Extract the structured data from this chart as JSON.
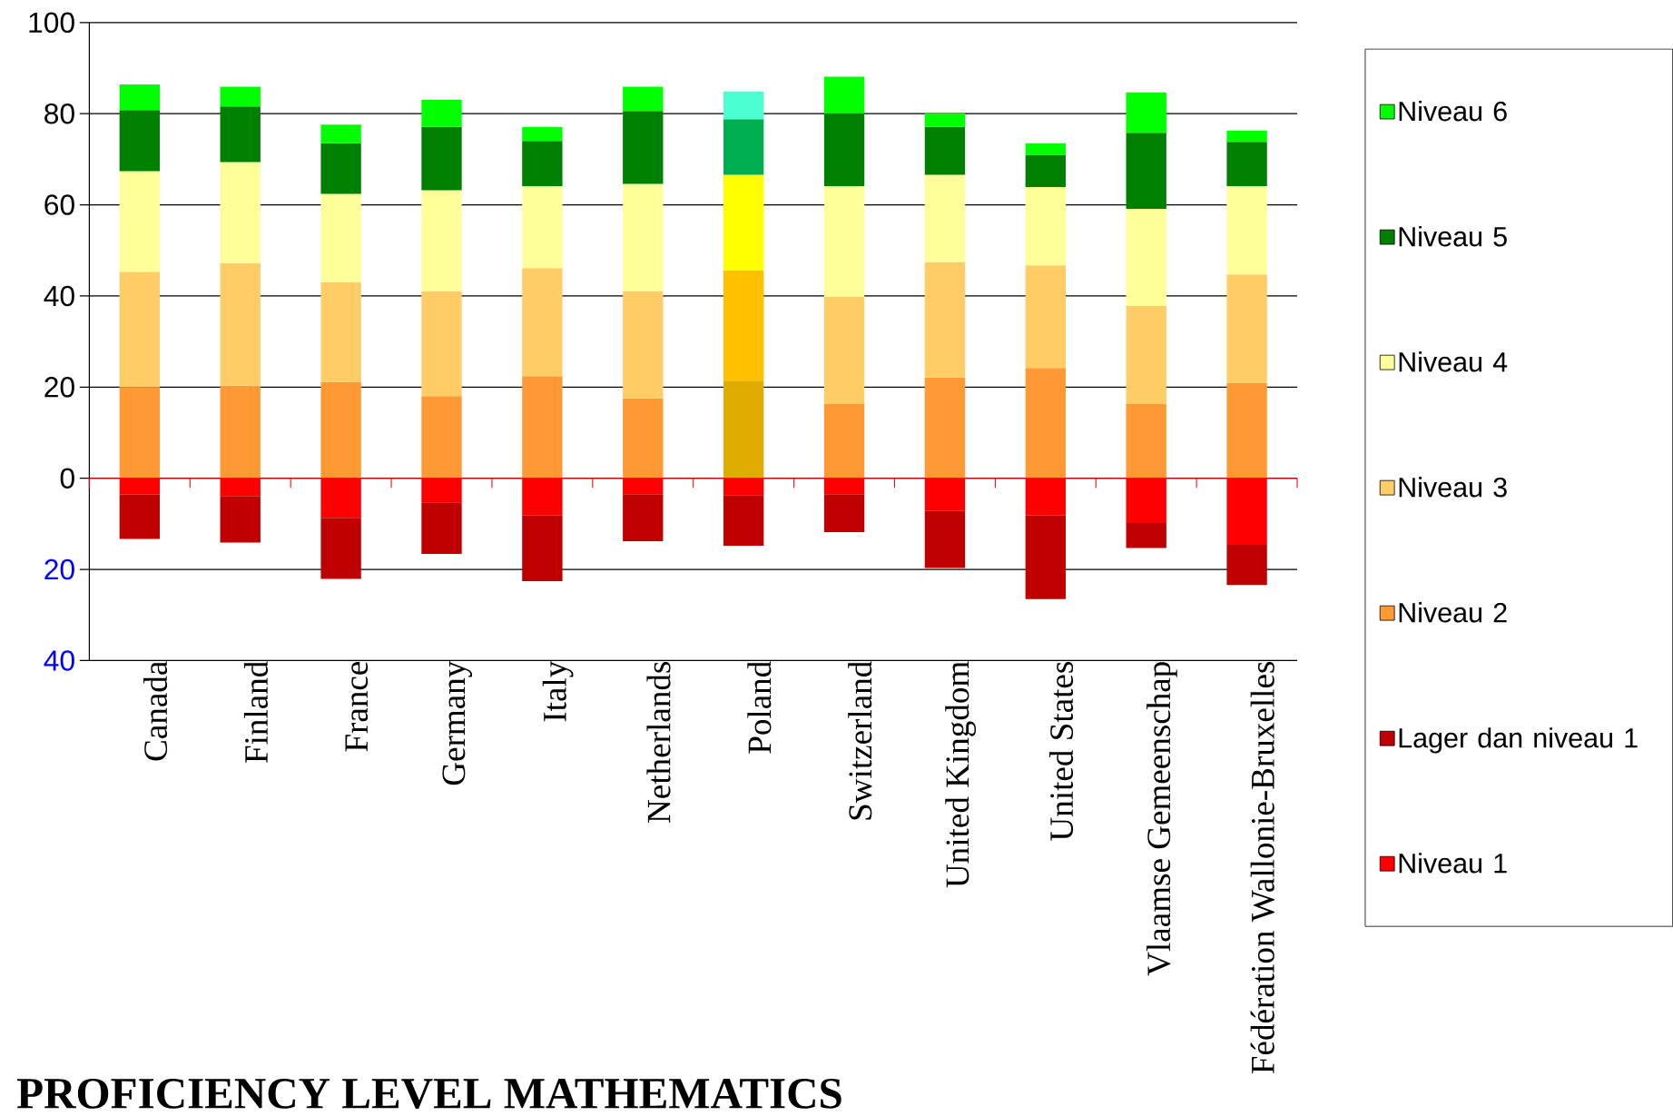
{
  "chart_data": {
    "type": "bar",
    "title": "PROFICIENCY LEVEL MATHEMATICS",
    "categories": [
      "Canada",
      "Finland",
      "France",
      "Germany",
      "Italy",
      "Netherlands",
      "Poland",
      "Switzerland",
      "United Kingdom",
      "United States",
      "Vlaamse Gemeenschap",
      "Fédération Wallonie-Bruxelles"
    ],
    "stacked": true,
    "series": [
      {
        "name": "Niveau 1",
        "color": "#ff0000",
        "values": [
          -3.6,
          -3.9,
          -8.7,
          -5.3,
          -8.2,
          -3.5,
          -3.7,
          -3.5,
          -7.2,
          -8.2,
          -9.8,
          -14.6
        ]
      },
      {
        "name": "Lager dan niveau 1",
        "color": "#c00000",
        "values": [
          -9.7,
          -10.2,
          -13.4,
          -11.3,
          -14.4,
          -10.3,
          -11.1,
          -8.3,
          -12.5,
          -18.3,
          -5.5,
          -8.8
        ]
      },
      {
        "name": "Niveau 2",
        "color": "#ff9933",
        "colors": [
          "#ff9933",
          "#ff9933",
          "#ff9933",
          "#ff9933",
          "#ff9933",
          "#ff9933",
          "#e0ac00",
          "#ff9933",
          "#ff9933",
          "#ff9933",
          "#ff9933",
          "#ff9933"
        ],
        "values": [
          20.0,
          20.3,
          21.1,
          18.0,
          22.4,
          17.5,
          21.4,
          16.3,
          22.1,
          24.2,
          16.3,
          20.9
        ]
      },
      {
        "name": "Niveau 3",
        "color": "#ffcc66",
        "colors": [
          "#ffcc66",
          "#ffcc66",
          "#ffcc66",
          "#ffcc66",
          "#ffcc66",
          "#ffcc66",
          "#ffc000",
          "#ffcc66",
          "#ffcc66",
          "#ffcc66",
          "#ffcc66",
          "#ffcc66"
        ],
        "values": [
          25.3,
          26.9,
          21.9,
          23.1,
          23.7,
          23.6,
          24.2,
          23.5,
          25.3,
          22.5,
          21.5,
          23.8
        ]
      },
      {
        "name": "Niveau 4",
        "color": "#ffff99",
        "colors": [
          "#ffff99",
          "#ffff99",
          "#ffff99",
          "#ffff99",
          "#ffff99",
          "#ffff99",
          "#ffff00",
          "#ffff99",
          "#ffff99",
          "#ffff99",
          "#ffff99",
          "#ffff99"
        ],
        "values": [
          22.1,
          22.2,
          19.4,
          22.1,
          18.0,
          23.5,
          21.0,
          24.3,
          19.2,
          17.2,
          21.3,
          19.4
        ]
      },
      {
        "name": "Niveau 5",
        "color": "#008000",
        "colors": [
          "#008000",
          "#008000",
          "#008000",
          "#008000",
          "#008000",
          "#008000",
          "#00b050",
          "#008000",
          "#008000",
          "#008000",
          "#008000",
          "#008000"
        ],
        "values": [
          13.4,
          12.2,
          11.1,
          13.9,
          9.9,
          16.0,
          12.2,
          16.0,
          10.5,
          7.1,
          16.7,
          9.7
        ]
      },
      {
        "name": "Niveau 6",
        "color": "#00ff00",
        "colors": [
          "#00ff00",
          "#00ff00",
          "#00ff00",
          "#00ff00",
          "#00ff00",
          "#00ff00",
          "#4bffd0",
          "#00ff00",
          "#00ff00",
          "#00ff00",
          "#00ff00",
          "#00ff00"
        ],
        "values": [
          5.6,
          4.3,
          4.1,
          6.0,
          3.1,
          5.3,
          6.1,
          8.0,
          3.0,
          2.5,
          8.9,
          2.5
        ]
      }
    ],
    "ylim": [
      -40,
      100
    ],
    "yticks": [
      {
        "value": -40,
        "label": "40"
      },
      {
        "value": -20,
        "label": "20"
      },
      0,
      20,
      40,
      60,
      80,
      100
    ],
    "ref_lines": [
      {
        "axis": "y",
        "value": 0,
        "color": "#ff0000"
      }
    ],
    "grid": "y",
    "legend": "right"
  }
}
